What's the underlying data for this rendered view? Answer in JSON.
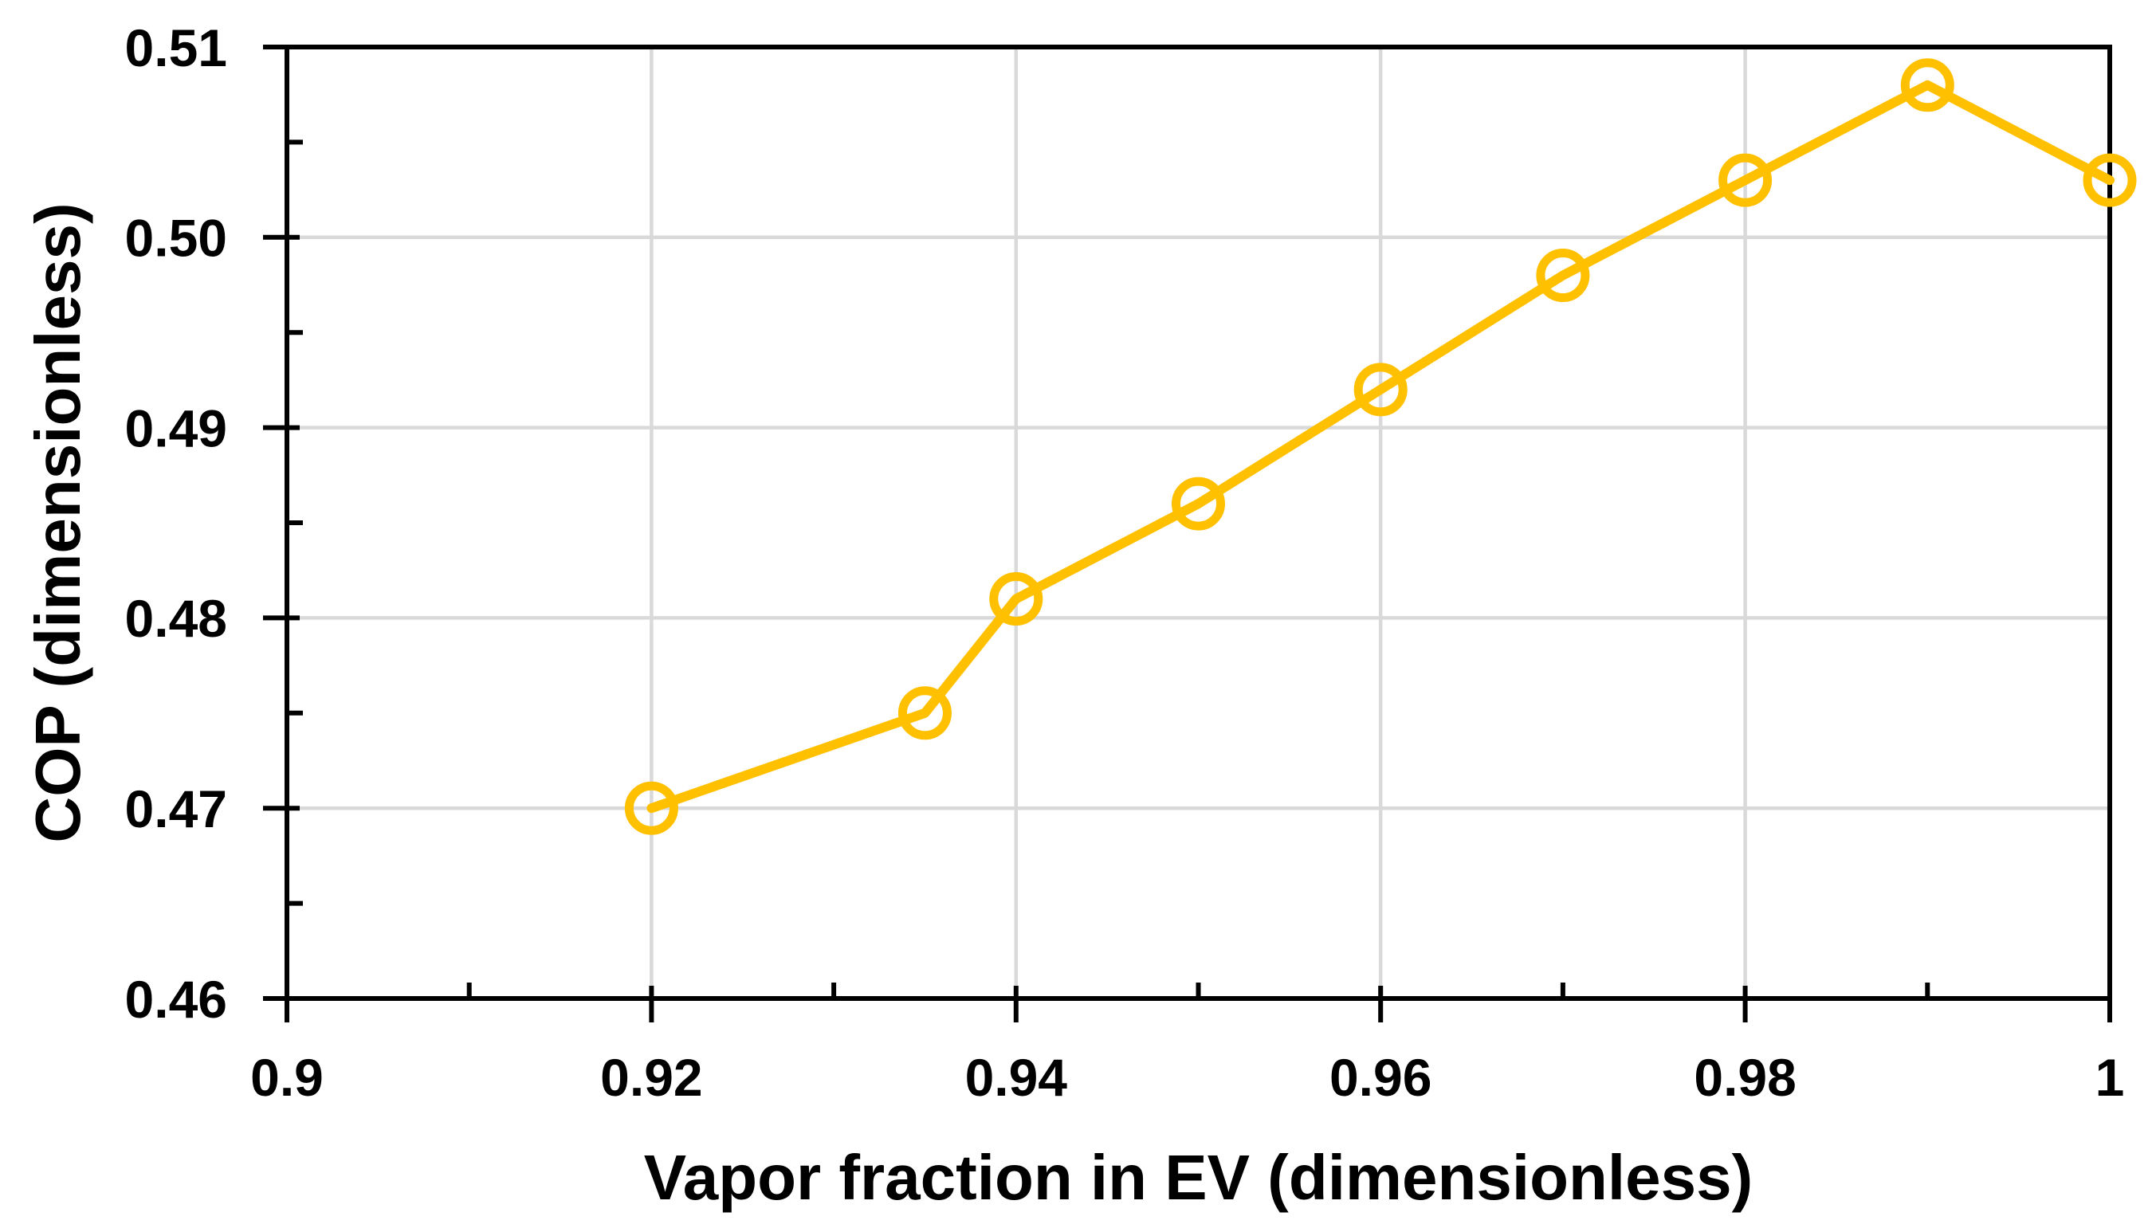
{
  "chart_data": {
    "type": "line",
    "title": "",
    "xlabel": "Vapor fraction in EV (dimensionless)",
    "ylabel": "COP (dimensionless)",
    "xlim": [
      0.9,
      1.0
    ],
    "ylim": [
      0.46,
      0.51
    ],
    "grid": true,
    "legend": false,
    "series": [
      {
        "name": "COP",
        "marker": "open-circle",
        "x": [
          0.92,
          0.935,
          0.94,
          0.95,
          0.96,
          0.97,
          0.98,
          0.99,
          1.0
        ],
        "y": [
          0.47,
          0.475,
          0.481,
          0.486,
          0.492,
          0.498,
          0.503,
          0.508,
          0.503
        ]
      }
    ],
    "x_axis": {
      "major_ticks": [
        0.9,
        0.92,
        0.94,
        0.96,
        0.98,
        1.0
      ],
      "tick_labels": [
        "0.9",
        "0.92",
        "0.94",
        "0.96",
        "0.98",
        "1"
      ],
      "minor_ticks": [
        0.91,
        0.93,
        0.95,
        0.97,
        0.99
      ]
    },
    "y_axis": {
      "major_ticks": [
        0.46,
        0.47,
        0.48,
        0.49,
        0.5,
        0.51
      ],
      "tick_labels": [
        "0.46",
        "0.47",
        "0.48",
        "0.49",
        "0.50",
        "0.51"
      ],
      "minor_ticks": [
        0.465,
        0.475,
        0.485,
        0.495,
        0.505
      ]
    },
    "colors": {
      "series": "#FFC000",
      "gridline": "#D9D9D9",
      "axis": "#000000",
      "text": "#000000",
      "background": "#FFFFFF"
    }
  }
}
